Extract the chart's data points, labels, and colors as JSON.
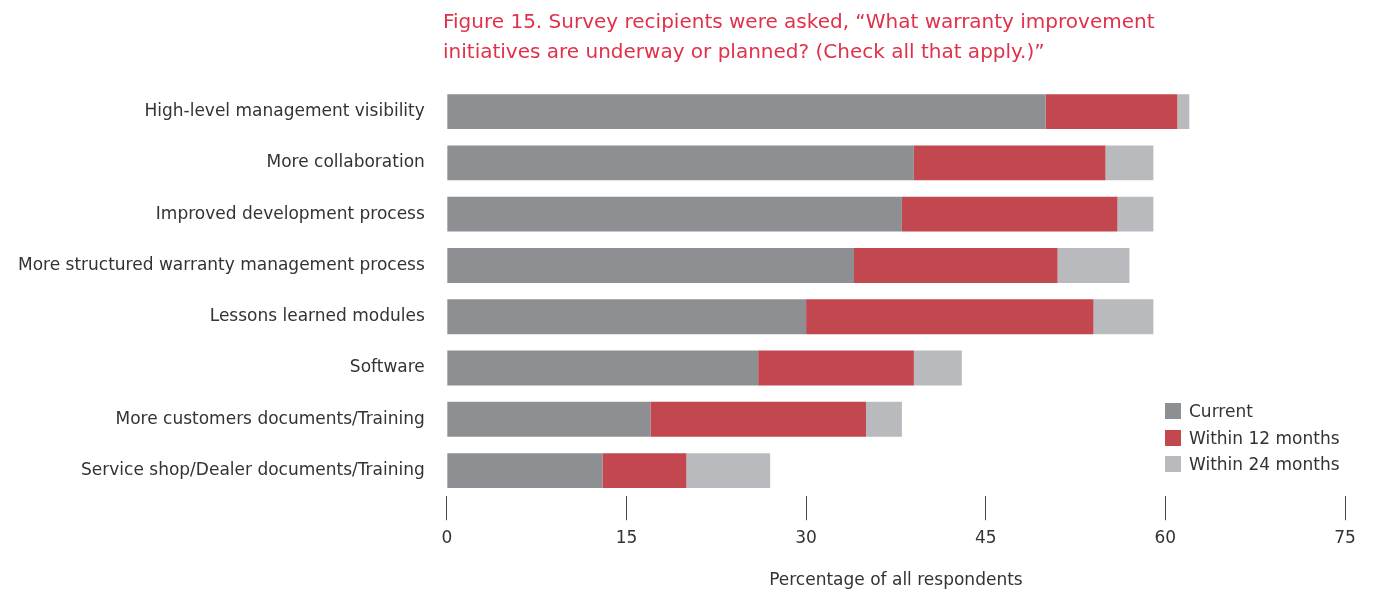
{
  "chart_data": {
    "type": "bar",
    "orientation": "horizontal",
    "stacked": true,
    "title": "Figure 15. Survey recipients were asked, “What warranty improvement initiatives are underway or planned? (Check all that apply.)”",
    "xlabel": "Percentage of all respondents",
    "categories": [
      "High-level management visibility",
      "More collaboration",
      "Improved development process",
      "More structured warranty management process",
      "Lessons learned modules",
      "Software",
      "More customers documents/Training",
      "Service shop/Dealer documents/Training"
    ],
    "series": [
      {
        "name": "Current",
        "color": "#8e8f93",
        "values": [
          50,
          39,
          38,
          34,
          30,
          26,
          17,
          13
        ]
      },
      {
        "name": "Within 12 months",
        "color": "#c2474f",
        "values": [
          11,
          16,
          18,
          17,
          24,
          13,
          18,
          7
        ]
      },
      {
        "name": "Within 24 months",
        "color": "#b9babd",
        "values": [
          1,
          4,
          3,
          6,
          5,
          4,
          3,
          7
        ]
      }
    ],
    "xlim": [
      0,
      75
    ],
    "xticks": [
      0,
      15,
      30,
      45,
      60,
      75
    ],
    "grid": false,
    "legend": "bottom right"
  }
}
